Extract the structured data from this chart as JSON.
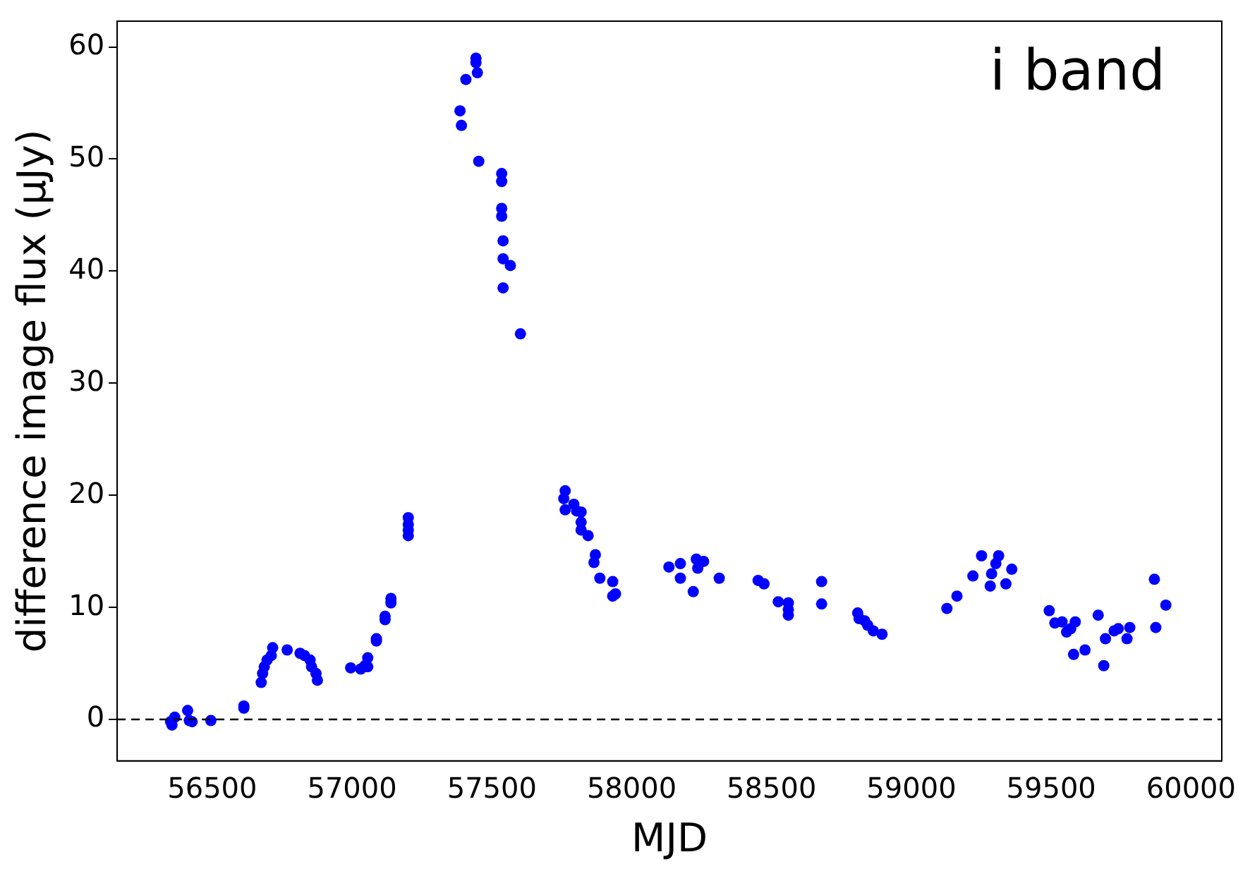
{
  "chart_data": {
    "type": "scatter",
    "xlabel": "MJD",
    "ylabel": "difference image flux (μJy)",
    "annotations": [
      "i band"
    ],
    "xlim": [
      56160,
      60110
    ],
    "ylim": [
      -3.7,
      62.3
    ],
    "xticks": [
      56500,
      57000,
      57500,
      58000,
      58500,
      59000,
      59500,
      60000
    ],
    "yticks": [
      0,
      10,
      20,
      30,
      40,
      50,
      60
    ],
    "grid": false,
    "legend": false,
    "marker": "circle",
    "ref_lines": [
      {
        "axis": "y",
        "value": 0,
        "color": "#000000",
        "line_style": "dashed"
      }
    ],
    "series": [
      {
        "color": "#0000ff",
        "x": [
          56351,
          56356,
          56366,
          56412,
          56418,
          56428,
          56495,
          56613,
          56613,
          56675,
          56680,
          56686,
          56696,
          56711,
          56716,
          56768,
          56814,
          56830,
          56850,
          56855,
          56871,
          56876,
          56995,
          57031,
          57046,
          57056,
          57056,
          57087,
          57087,
          57118,
          57118,
          57139,
          57139,
          57201,
          57201,
          57201,
          57201,
          57443,
          57443,
          57448,
          57407,
          57386,
          57391,
          57453,
          57535,
          57535,
          57535,
          57535,
          57540,
          57540,
          57566,
          57540,
          57602,
          57762,
          57757,
          57762,
          57793,
          57803,
          57819,
          57819,
          57819,
          57844,
          57870,
          57865,
          57886,
          57932,
          57942,
          57932,
          58133,
          58174,
          58174,
          58220,
          58231,
          58257,
          58236,
          58313,
          58452,
          58473,
          58524,
          58560,
          58560,
          58560,
          58679,
          58679,
          58808,
          58813,
          58833,
          58844,
          58864,
          58895,
          59127,
          59163,
          59220,
          59251,
          59312,
          59302,
          59287,
          59282,
          59338,
          59359,
          59493,
          59513,
          59539,
          59555,
          59570,
          59586,
          59580,
          59621,
          59668,
          59688,
          59694,
          59725,
          59740,
          59771,
          59781,
          59869,
          59874,
          59910
        ],
        "values": [
          -0.2,
          -0.5,
          0.2,
          0.8,
          -0.1,
          -0.2,
          -0.1,
          1.2,
          1.0,
          3.3,
          4.1,
          4.7,
          5.3,
          5.7,
          6.4,
          6.2,
          5.9,
          5.7,
          5.3,
          4.7,
          4.1,
          3.5,
          4.6,
          4.5,
          4.8,
          5.5,
          4.7,
          7.2,
          7.0,
          8.9,
          9.2,
          10.4,
          10.8,
          18.0,
          17.4,
          16.9,
          16.4,
          59.0,
          58.6,
          57.7,
          57.1,
          54.3,
          53.0,
          49.8,
          48.7,
          48.0,
          45.6,
          44.9,
          42.7,
          41.1,
          40.5,
          38.5,
          34.4,
          20.4,
          19.7,
          18.7,
          19.2,
          18.6,
          18.5,
          17.6,
          16.9,
          16.4,
          14.7,
          14.0,
          12.6,
          12.3,
          11.2,
          11.0,
          13.6,
          13.9,
          12.6,
          11.4,
          14.3,
          14.1,
          13.5,
          12.6,
          12.4,
          12.1,
          10.5,
          10.4,
          9.8,
          9.3,
          12.3,
          10.3,
          9.5,
          9.0,
          8.8,
          8.4,
          7.9,
          7.6,
          9.9,
          11.0,
          12.8,
          14.6,
          14.6,
          13.9,
          13.0,
          11.9,
          12.1,
          13.4,
          9.7,
          8.6,
          8.7,
          7.8,
          8.1,
          8.7,
          5.8,
          6.2,
          9.3,
          4.8,
          7.2,
          7.9,
          8.1,
          7.2,
          8.2,
          12.5,
          8.2,
          10.2
        ]
      }
    ]
  }
}
